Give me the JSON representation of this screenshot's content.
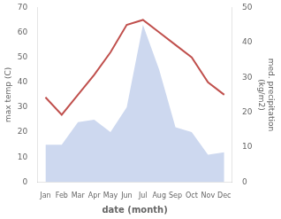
{
  "chart_data": {
    "type": "line",
    "categories": [
      "Jan",
      "Feb",
      "Mar",
      "Apr",
      "May",
      "Jun",
      "Jul",
      "Aug",
      "Sep",
      "Oct",
      "Nov",
      "Dec"
    ],
    "series": [
      {
        "type": "area",
        "color": "#b8c7e8",
        "values": [
          15,
          15,
          24,
          25,
          20,
          30,
          63,
          45,
          22,
          20,
          11,
          12
        ]
      },
      {
        "type": "line",
        "color": "#c0504d",
        "values": [
          34,
          27,
          35,
          43,
          52,
          63,
          65,
          60,
          55,
          50,
          40,
          35
        ]
      }
    ],
    "xlabel": "date (month)",
    "ylabel": "max temp (C)",
    "y2label": "med. precipitation\n(kg/m2)",
    "ylim": [
      0,
      70
    ],
    "yticks": [
      0,
      10,
      20,
      30,
      40,
      50,
      60,
      70
    ],
    "y2lim": [
      0,
      50
    ],
    "y2ticks": [
      0,
      10,
      20,
      30,
      40,
      50
    ],
    "grid": false
  }
}
